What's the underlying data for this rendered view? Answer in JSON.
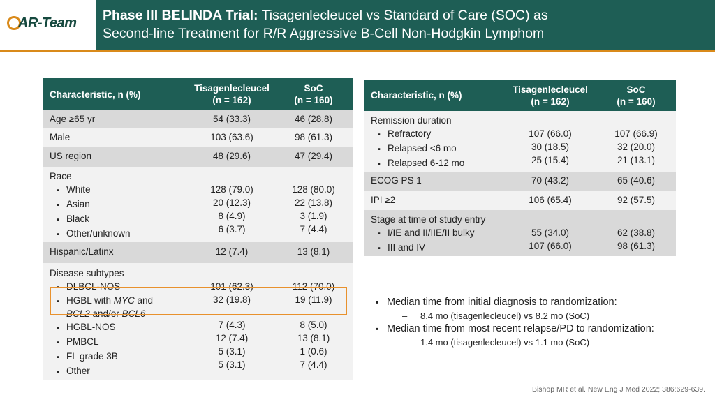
{
  "logo": {
    "text": "AR-Team",
    "prefix": "C"
  },
  "header": {
    "title_bold": "Phase III BELINDA Trial:",
    "title_rest": " Tisagenlecleucel vs Standard of Care (SOC) as",
    "title_line2": "Second-line Treatment for R/R Aggressive B-Cell Non-Hodgkin Lymphom"
  },
  "left_table": {
    "headers": [
      "Characteristic, n (%)",
      "Tisagenlecleucel\n(n = 162)",
      "SoC\n(n = 160)"
    ],
    "rows": [
      {
        "label": "Age ≥65 yr",
        "a": "54 (33.3)",
        "b": "46 (28.8)"
      },
      {
        "label": "Male",
        "a": "103 (63.6)",
        "b": "98 (61.3)"
      },
      {
        "label": "US region",
        "a": "48 (29.6)",
        "b": "47 (29.4)"
      },
      {
        "label": "Race",
        "subs": [
          {
            "label": "White",
            "a": "128 (79.0)",
            "b": "128 (80.0)"
          },
          {
            "label": "Asian",
            "a": "20 (12.3)",
            "b": "22 (13.8)"
          },
          {
            "label": "Black",
            "a": "8 (4.9)",
            "b": "3 (1.9)"
          },
          {
            "label": "Other/unknown",
            "a": "6 (3.7)",
            "b": "7 (4.4)"
          }
        ]
      },
      {
        "label": "Hispanic/Latinx",
        "a": "12 (7.4)",
        "b": "13 (8.1)"
      },
      {
        "label": "Disease subtypes",
        "subs": [
          {
            "label": "DLBCL-NOS",
            "a": "101 (62.3)",
            "b": "112 (70.0)"
          },
          {
            "label": "HGBL with MYC and BCL2 and/or BCL6",
            "a": "32 (19.8)",
            "b": "19 (11.9)"
          },
          {
            "label": "HGBL-NOS",
            "a": "7 (4.3)",
            "b": "8 (5.0)"
          },
          {
            "label": "PMBCL",
            "a": "12 (7.4)",
            "b": "13 (8.1)"
          },
          {
            "label": "FL grade 3B",
            "a": "5 (3.1)",
            "b": "1 (0.6)"
          },
          {
            "label": "Other",
            "a": "5 (3.1)",
            "b": "7 (4.4)"
          }
        ]
      }
    ]
  },
  "right_table": {
    "headers": [
      "Characteristic, n (%)",
      "Tisagenlecleucel\n(n = 162)",
      "SoC\n(n = 160)"
    ],
    "rows": [
      {
        "label": "Remission duration",
        "subs": [
          {
            "label": "Refractory",
            "a": "107 (66.0)",
            "b": "107 (66.9)"
          },
          {
            "label": "Relapsed <6 mo",
            "a": "30 (18.5)",
            "b": "32 (20.0)"
          },
          {
            "label": "Relapsed 6-12 mo",
            "a": "25 (15.4)",
            "b": "21 (13.1)"
          }
        ]
      },
      {
        "label": "ECOG PS 1",
        "a": "70 (43.2)",
        "b": "65 (40.6)"
      },
      {
        "label": "IPI ≥2",
        "a": "106 (65.4)",
        "b": "92 (57.5)"
      },
      {
        "label": "Stage at time of study entry",
        "subs": [
          {
            "label": "I/IE and II/IIE/II bulky",
            "a": "55 (34.0)",
            "b": "62 (38.8)"
          },
          {
            "label": "III and IV",
            "a": "107 (66.0)",
            "b": "98 (61.3)"
          }
        ]
      }
    ]
  },
  "bullets": [
    {
      "text": "Median time from initial diagnosis to randomization:",
      "sub": "8.4 mo (tisagenlecleucel) vs 8.2 mo (SoC)"
    },
    {
      "text": "Median time from most recent relapse/PD to randomization:",
      "sub": "1.4 mo (tisagenlecleucel) vs 1.1 mo (SoC)"
    }
  ],
  "reference": "Bishop MR et al. New Eng J Med 2022; 386:629-639."
}
